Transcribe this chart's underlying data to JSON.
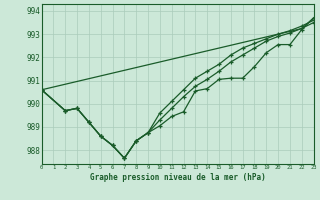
{
  "title": "Graphe pression niveau de la mer (hPa)",
  "bg_color": "#cce8d8",
  "grid_color": "#aaccbb",
  "line_color": "#1a5c2a",
  "hours": [
    0,
    1,
    2,
    3,
    4,
    5,
    6,
    7,
    8,
    9,
    10,
    11,
    12,
    13,
    14,
    15,
    16,
    17,
    18,
    19,
    20,
    21,
    22,
    23
  ],
  "pressure_main": [
    990.6,
    null,
    989.7,
    989.8,
    989.2,
    988.6,
    988.2,
    987.65,
    988.4,
    988.75,
    989.05,
    989.45,
    989.65,
    990.55,
    990.65,
    991.05,
    991.1,
    991.1,
    991.6,
    992.2,
    992.55,
    992.55,
    993.2,
    993.7
  ],
  "pressure_line2": [
    990.6,
    null,
    989.7,
    989.8,
    989.2,
    988.6,
    988.2,
    987.65,
    988.4,
    988.75,
    989.3,
    989.8,
    990.3,
    990.75,
    991.05,
    991.4,
    991.8,
    992.1,
    992.4,
    992.7,
    992.9,
    993.05,
    993.25,
    993.5
  ],
  "pressure_line3": [
    990.6,
    null,
    989.7,
    989.8,
    989.2,
    988.6,
    988.2,
    987.65,
    988.4,
    988.75,
    989.6,
    990.1,
    990.6,
    991.1,
    991.4,
    991.7,
    992.1,
    992.4,
    992.6,
    992.8,
    993.0,
    993.15,
    993.35,
    993.6
  ],
  "pressure_straight": [
    990.6,
    990.72,
    990.84,
    990.96,
    991.08,
    991.2,
    991.32,
    991.44,
    991.56,
    991.68,
    991.8,
    991.92,
    992.04,
    992.16,
    992.28,
    992.4,
    992.52,
    992.64,
    992.76,
    992.88,
    993.0,
    993.12,
    993.24,
    993.7
  ],
  "ylim": [
    987.4,
    994.3
  ],
  "yticks": [
    988,
    989,
    990,
    991,
    992,
    993,
    994
  ],
  "xlim": [
    0,
    23
  ]
}
